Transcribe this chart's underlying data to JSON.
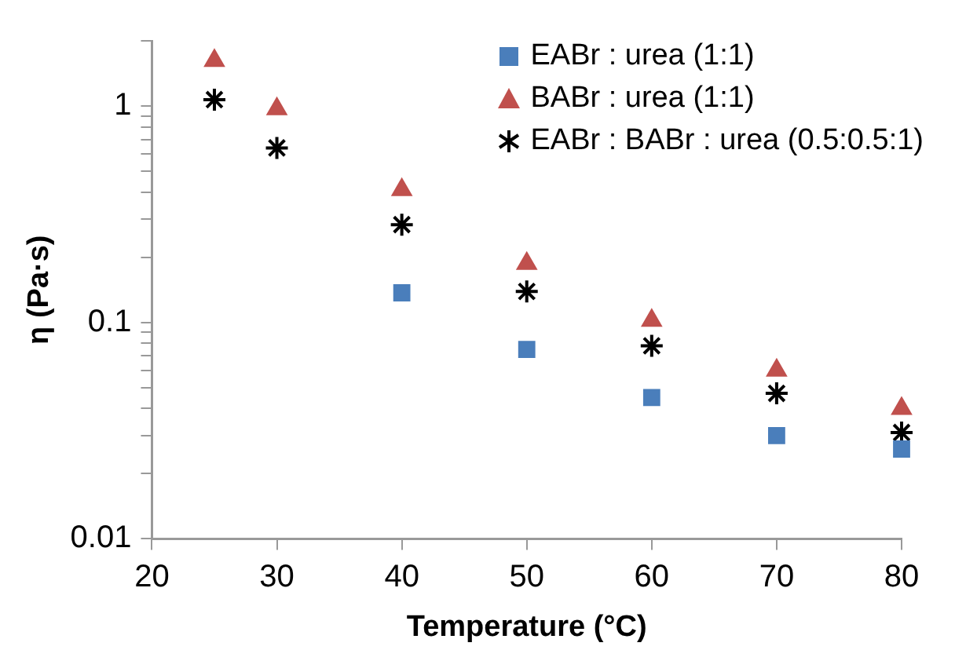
{
  "chart_data": {
    "type": "scatter",
    "xlabel": "Temperature (°C)",
    "ylabel": "η (Pa·s)",
    "log": "y",
    "grid": false,
    "legend": "top right",
    "xlim": [
      20,
      80
    ],
    "xticks": [
      20,
      30,
      40,
      50,
      60,
      70,
      80
    ],
    "ylim": [
      0.01,
      2
    ],
    "yticks": [
      0.01,
      {
        "value": 0.02,
        "label": null
      },
      {
        "value": 0.03,
        "label": null
      },
      {
        "value": 0.04,
        "label": null
      },
      {
        "value": 0.05,
        "label": null
      },
      {
        "value": 0.06,
        "label": null
      },
      {
        "value": 0.07,
        "label": null
      },
      {
        "value": 0.08,
        "label": null
      },
      {
        "value": 0.09,
        "label": null
      },
      0.1,
      {
        "value": 0.2,
        "label": null
      },
      {
        "value": 0.3,
        "label": null
      },
      {
        "value": 0.4,
        "label": null
      },
      {
        "value": 0.5,
        "label": null
      },
      {
        "value": 0.6,
        "label": null
      },
      {
        "value": 0.7,
        "label": null
      },
      {
        "value": 0.8,
        "label": null
      },
      {
        "value": 0.9,
        "label": null
      },
      1,
      {
        "value": 2,
        "label": null
      }
    ],
    "series": [
      {
        "name": "EABr : urea (1:1)",
        "color": "#4a7ebb",
        "marker": "square",
        "x": [
          40,
          50,
          60,
          70,
          80
        ],
        "values": [
          0.137,
          0.075,
          0.045,
          0.03,
          0.026
        ]
      },
      {
        "name": "BABr : urea (1:1)",
        "color": "#c0504d",
        "marker": "triangle",
        "x": [
          25,
          30,
          40,
          50,
          60,
          70,
          80
        ],
        "values": [
          1.62,
          0.97,
          0.41,
          0.187,
          0.102,
          0.06,
          0.04
        ]
      },
      {
        "name": "EABr : BABr : urea (0.5:0.5:1)",
        "color": "#000000",
        "marker": "cross",
        "x": [
          25,
          30,
          40,
          50,
          60,
          70,
          80
        ],
        "values": [
          1.07,
          0.64,
          0.283,
          0.139,
          0.078,
          0.047,
          0.031
        ]
      }
    ]
  }
}
